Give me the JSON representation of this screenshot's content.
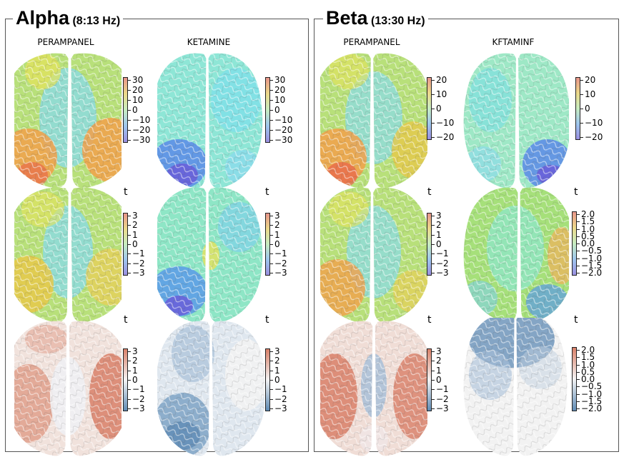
{
  "panels": {
    "alpha": {
      "title": "Alpha",
      "range": "(8:13 Hz)"
    },
    "beta": {
      "title": "Beta",
      "range": "(13:30 Hz)"
    }
  },
  "columns": {
    "perampanel": "PERAMPANEL",
    "ketamine": "KETAMINE",
    "ketamine_beta": "KFTAMINF"
  },
  "t_label": "t",
  "colorbars": {
    "alpha_row1": [
      "30",
      "20",
      "10",
      "0",
      "−10",
      "−20",
      "−30"
    ],
    "beta_row1": [
      "20",
      "10",
      "0",
      "−10",
      "−20"
    ],
    "t3": [
      "3",
      "2",
      "1",
      "0",
      "−1",
      "−2",
      "−3"
    ],
    "t2": [
      "2.0",
      "1.5",
      "1.0",
      "0.5",
      "0.0",
      "−0.5",
      "−1.0",
      "−1.5",
      "−2.0"
    ]
  },
  "colors": {
    "jet_red": "#e8614a",
    "jet_orange": "#f2a04a",
    "jet_yellow": "#e6e25a",
    "jet_green": "#a6e07a",
    "jet_cyan": "#7fe0e0",
    "jet_blue": "#5a8ae8",
    "jet_violet": "#6a5ad8",
    "div_red": "#d98068",
    "div_blue": "#5f8bb5",
    "div_white": "#f2f2f2"
  }
}
